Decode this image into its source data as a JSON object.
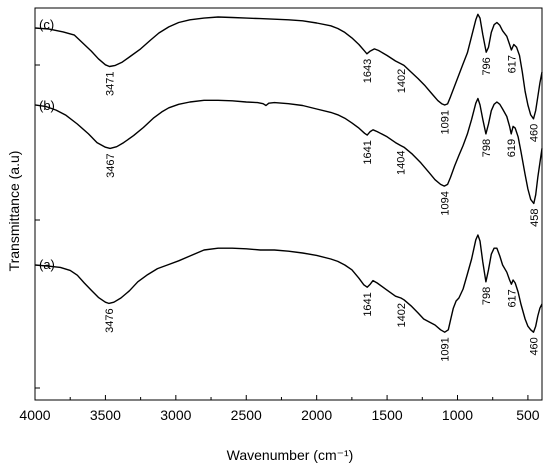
{
  "chart_data": {
    "type": "line",
    "xlabel": "Wavenumber (cm⁻¹)",
    "ylabel": "Transmittance (a.u)",
    "xlim": [
      4000,
      400
    ],
    "x_reversed": true,
    "x_ticks": [
      "4000",
      "3500",
      "3000",
      "2500",
      "2000",
      "1500",
      "1000",
      "500"
    ],
    "y_ticks_labeled": false,
    "grid": false,
    "legend": "none",
    "line_color": "#000000",
    "series": [
      {
        "name": "(c)",
        "points": [
          [
            4000,
            0.8
          ],
          [
            3900,
            0.78
          ],
          [
            3800,
            0.73
          ],
          [
            3720,
            0.67
          ],
          [
            3650,
            0.5
          ],
          [
            3600,
            0.38
          ],
          [
            3550,
            0.24
          ],
          [
            3500,
            0.13
          ],
          [
            3471,
            0.1
          ],
          [
            3430,
            0.12
          ],
          [
            3380,
            0.18
          ],
          [
            3320,
            0.29
          ],
          [
            3250,
            0.42
          ],
          [
            3180,
            0.58
          ],
          [
            3120,
            0.71
          ],
          [
            3050,
            0.82
          ],
          [
            2980,
            0.9
          ],
          [
            2900,
            0.95
          ],
          [
            2800,
            0.98
          ],
          [
            2700,
            1.0
          ],
          [
            2600,
            0.99
          ],
          [
            2500,
            0.98
          ],
          [
            2400,
            0.97
          ],
          [
            2300,
            0.96
          ],
          [
            2200,
            0.95
          ],
          [
            2100,
            0.93
          ],
          [
            2000,
            0.89
          ],
          [
            1900,
            0.84
          ],
          [
            1850,
            0.79
          ],
          [
            1800,
            0.72
          ],
          [
            1750,
            0.62
          ],
          [
            1700,
            0.5
          ],
          [
            1660,
            0.38
          ],
          [
            1643,
            0.33
          ],
          [
            1620,
            0.38
          ],
          [
            1590,
            0.42
          ],
          [
            1560,
            0.39
          ],
          [
            1500,
            0.3
          ],
          [
            1440,
            0.2
          ],
          [
            1402,
            0.15
          ],
          [
            1380,
            0.12
          ],
          [
            1330,
            0.0
          ],
          [
            1280,
            -0.12
          ],
          [
            1230,
            -0.25
          ],
          [
            1180,
            -0.4
          ],
          [
            1140,
            -0.52
          ],
          [
            1110,
            -0.58
          ],
          [
            1091,
            -0.6
          ],
          [
            1070,
            -0.58
          ],
          [
            1050,
            -0.45
          ],
          [
            1020,
            -0.25
          ],
          [
            990,
            -0.05
          ],
          [
            960,
            0.15
          ],
          [
            930,
            0.35
          ],
          [
            900,
            0.65
          ],
          [
            870,
            0.95
          ],
          [
            855,
            1.05
          ],
          [
            840,
            0.98
          ],
          [
            820,
            0.68
          ],
          [
            796,
            0.36
          ],
          [
            780,
            0.45
          ],
          [
            760,
            0.72
          ],
          [
            740,
            0.86
          ],
          [
            720,
            0.9
          ],
          [
            700,
            0.85
          ],
          [
            680,
            0.75
          ],
          [
            650,
            0.65
          ],
          [
            630,
            0.5
          ],
          [
            617,
            0.4
          ],
          [
            600,
            0.5
          ],
          [
            580,
            0.45
          ],
          [
            560,
            0.3
          ],
          [
            540,
            0.0
          ],
          [
            520,
            -0.35
          ],
          [
            500,
            -0.6
          ],
          [
            480,
            -0.78
          ],
          [
            460,
            -0.85
          ],
          [
            445,
            -0.7
          ],
          [
            430,
            -0.45
          ],
          [
            415,
            -0.2
          ],
          [
            400,
            0.0
          ]
        ]
      },
      {
        "name": "(b)",
        "points": [
          [
            4000,
            0.95
          ],
          [
            3920,
            0.92
          ],
          [
            3850,
            0.86
          ],
          [
            3780,
            0.77
          ],
          [
            3700,
            0.62
          ],
          [
            3620,
            0.45
          ],
          [
            3560,
            0.3
          ],
          [
            3500,
            0.22
          ],
          [
            3467,
            0.2
          ],
          [
            3420,
            0.23
          ],
          [
            3370,
            0.3
          ],
          [
            3300,
            0.42
          ],
          [
            3230,
            0.56
          ],
          [
            3160,
            0.72
          ],
          [
            3100,
            0.83
          ],
          [
            3050,
            0.9
          ],
          [
            2980,
            0.96
          ],
          [
            2900,
            1.0
          ],
          [
            2800,
            1.03
          ],
          [
            2700,
            1.03
          ],
          [
            2600,
            1.02
          ],
          [
            2500,
            1.0
          ],
          [
            2420,
            0.99
          ],
          [
            2380,
            0.97
          ],
          [
            2360,
            0.94
          ],
          [
            2340,
            0.98
          ],
          [
            2300,
            0.99
          ],
          [
            2200,
            0.97
          ],
          [
            2100,
            0.94
          ],
          [
            2000,
            0.88
          ],
          [
            1900,
            0.82
          ],
          [
            1850,
            0.78
          ],
          [
            1800,
            0.72
          ],
          [
            1750,
            0.64
          ],
          [
            1700,
            0.55
          ],
          [
            1660,
            0.46
          ],
          [
            1641,
            0.43
          ],
          [
            1620,
            0.49
          ],
          [
            1600,
            0.52
          ],
          [
            1570,
            0.49
          ],
          [
            1500,
            0.4
          ],
          [
            1440,
            0.3
          ],
          [
            1404,
            0.25
          ],
          [
            1380,
            0.22
          ],
          [
            1320,
            0.1
          ],
          [
            1260,
            -0.05
          ],
          [
            1200,
            -0.22
          ],
          [
            1160,
            -0.34
          ],
          [
            1120,
            -0.42
          ],
          [
            1094,
            -0.45
          ],
          [
            1070,
            -0.42
          ],
          [
            1050,
            -0.3
          ],
          [
            1020,
            -0.1
          ],
          [
            990,
            0.08
          ],
          [
            960,
            0.25
          ],
          [
            930,
            0.45
          ],
          [
            900,
            0.7
          ],
          [
            870,
            0.98
          ],
          [
            855,
            1.06
          ],
          [
            840,
            0.95
          ],
          [
            820,
            0.7
          ],
          [
            798,
            0.45
          ],
          [
            780,
            0.62
          ],
          [
            760,
            0.85
          ],
          [
            740,
            0.96
          ],
          [
            720,
            1.0
          ],
          [
            700,
            0.96
          ],
          [
            680,
            0.88
          ],
          [
            650,
            0.75
          ],
          [
            630,
            0.58
          ],
          [
            619,
            0.45
          ],
          [
            605,
            0.58
          ],
          [
            590,
            0.55
          ],
          [
            570,
            0.4
          ],
          [
            550,
            0.15
          ],
          [
            520,
            -0.25
          ],
          [
            500,
            -0.5
          ],
          [
            480,
            -0.68
          ],
          [
            458,
            -0.75
          ],
          [
            445,
            -0.6
          ],
          [
            430,
            -0.3
          ],
          [
            415,
            -0.05
          ],
          [
            400,
            0.2
          ]
        ]
      },
      {
        "name": "(a)",
        "points": [
          [
            4000,
            0.3
          ],
          [
            3900,
            0.28
          ],
          [
            3820,
            0.26
          ],
          [
            3750,
            0.21
          ],
          [
            3700,
            0.13
          ],
          [
            3650,
            0.0
          ],
          [
            3600,
            -0.12
          ],
          [
            3550,
            -0.24
          ],
          [
            3500,
            -0.32
          ],
          [
            3476,
            -0.34
          ],
          [
            3440,
            -0.32
          ],
          [
            3390,
            -0.25
          ],
          [
            3330,
            -0.13
          ],
          [
            3270,
            0.02
          ],
          [
            3200,
            0.14
          ],
          [
            3130,
            0.24
          ],
          [
            3060,
            0.3
          ],
          [
            2980,
            0.37
          ],
          [
            2900,
            0.45
          ],
          [
            2800,
            0.55
          ],
          [
            2700,
            0.58
          ],
          [
            2600,
            0.58
          ],
          [
            2500,
            0.57
          ],
          [
            2400,
            0.55
          ],
          [
            2300,
            0.55
          ],
          [
            2200,
            0.53
          ],
          [
            2100,
            0.5
          ],
          [
            2000,
            0.46
          ],
          [
            1900,
            0.4
          ],
          [
            1850,
            0.36
          ],
          [
            1800,
            0.3
          ],
          [
            1750,
            0.22
          ],
          [
            1700,
            0.08
          ],
          [
            1665,
            -0.03
          ],
          [
            1641,
            -0.07
          ],
          [
            1620,
            -0.02
          ],
          [
            1600,
            0.04
          ],
          [
            1570,
            0.0
          ],
          [
            1500,
            -0.12
          ],
          [
            1440,
            -0.22
          ],
          [
            1402,
            -0.25
          ],
          [
            1380,
            -0.28
          ],
          [
            1330,
            -0.38
          ],
          [
            1280,
            -0.5
          ],
          [
            1240,
            -0.6
          ],
          [
            1200,
            -0.65
          ],
          [
            1160,
            -0.7
          ],
          [
            1120,
            -0.78
          ],
          [
            1091,
            -0.82
          ],
          [
            1065,
            -0.78
          ],
          [
            1050,
            -0.62
          ],
          [
            1030,
            -0.42
          ],
          [
            1010,
            -0.3
          ],
          [
            990,
            -0.25
          ],
          [
            960,
            -0.1
          ],
          [
            930,
            0.15
          ],
          [
            900,
            0.4
          ],
          [
            870,
            0.72
          ],
          [
            855,
            0.8
          ],
          [
            840,
            0.7
          ],
          [
            820,
            0.35
          ],
          [
            798,
            0.02
          ],
          [
            780,
            0.22
          ],
          [
            760,
            0.48
          ],
          [
            740,
            0.58
          ],
          [
            720,
            0.58
          ],
          [
            700,
            0.45
          ],
          [
            680,
            0.3
          ],
          [
            650,
            0.18
          ],
          [
            630,
            0.05
          ],
          [
            617,
            -0.02
          ],
          [
            605,
            0.05
          ],
          [
            590,
            0.0
          ],
          [
            570,
            -0.15
          ],
          [
            550,
            -0.35
          ],
          [
            520,
            -0.6
          ],
          [
            500,
            -0.72
          ],
          [
            480,
            -0.78
          ],
          [
            460,
            -0.82
          ],
          [
            445,
            -0.72
          ],
          [
            430,
            -0.55
          ],
          [
            415,
            -0.42
          ],
          [
            400,
            -0.35
          ]
        ]
      }
    ],
    "peak_labels": [
      {
        "series": "(c)",
        "x": 3471,
        "text": "3471"
      },
      {
        "series": "(c)",
        "x": 1643,
        "text": "1643"
      },
      {
        "series": "(c)",
        "x": 1402,
        "text": "1402"
      },
      {
        "series": "(c)",
        "x": 1091,
        "text": "1091"
      },
      {
        "series": "(c)",
        "x": 796,
        "text": "796"
      },
      {
        "series": "(c)",
        "x": 617,
        "text": "617"
      },
      {
        "series": "(c)",
        "x": 460,
        "text": "460"
      },
      {
        "series": "(b)",
        "x": 3467,
        "text": "3467"
      },
      {
        "series": "(b)",
        "x": 1641,
        "text": "1641"
      },
      {
        "series": "(b)",
        "x": 1404,
        "text": "1404"
      },
      {
        "series": "(b)",
        "x": 1094,
        "text": "1094"
      },
      {
        "series": "(b)",
        "x": 798,
        "text": "798"
      },
      {
        "series": "(b)",
        "x": 619,
        "text": "619"
      },
      {
        "series": "(b)",
        "x": 458,
        "text": "458"
      },
      {
        "series": "(a)",
        "x": 3476,
        "text": "3476"
      },
      {
        "series": "(a)",
        "x": 1641,
        "text": "1641"
      },
      {
        "series": "(a)",
        "x": 1402,
        "text": "1402"
      },
      {
        "series": "(a)",
        "x": 1091,
        "text": "1091"
      },
      {
        "series": "(a)",
        "x": 798,
        "text": "798"
      },
      {
        "series": "(a)",
        "x": 617,
        "text": "617"
      },
      {
        "series": "(a)",
        "x": 460,
        "text": "460"
      }
    ]
  }
}
